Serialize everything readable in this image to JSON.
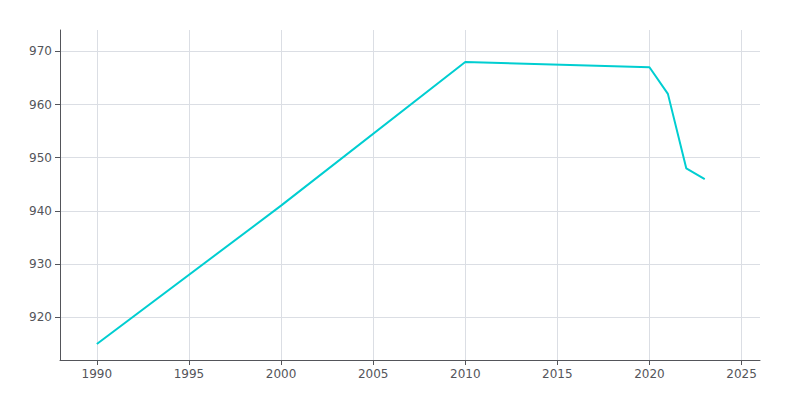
{
  "chart_data": {
    "type": "line",
    "x": [
      1990,
      2000,
      2010,
      2020,
      2021,
      2022,
      2023
    ],
    "values": [
      915,
      941,
      968,
      967,
      962,
      948,
      946
    ],
    "color": "#00CED1",
    "xlim": [
      1988,
      2026
    ],
    "ylim": [
      912,
      974
    ],
    "xticks": [
      1990,
      1995,
      2000,
      2005,
      2010,
      2015,
      2020,
      2025
    ],
    "yticks": [
      920,
      930,
      940,
      950,
      960,
      970
    ],
    "grid": true
  }
}
